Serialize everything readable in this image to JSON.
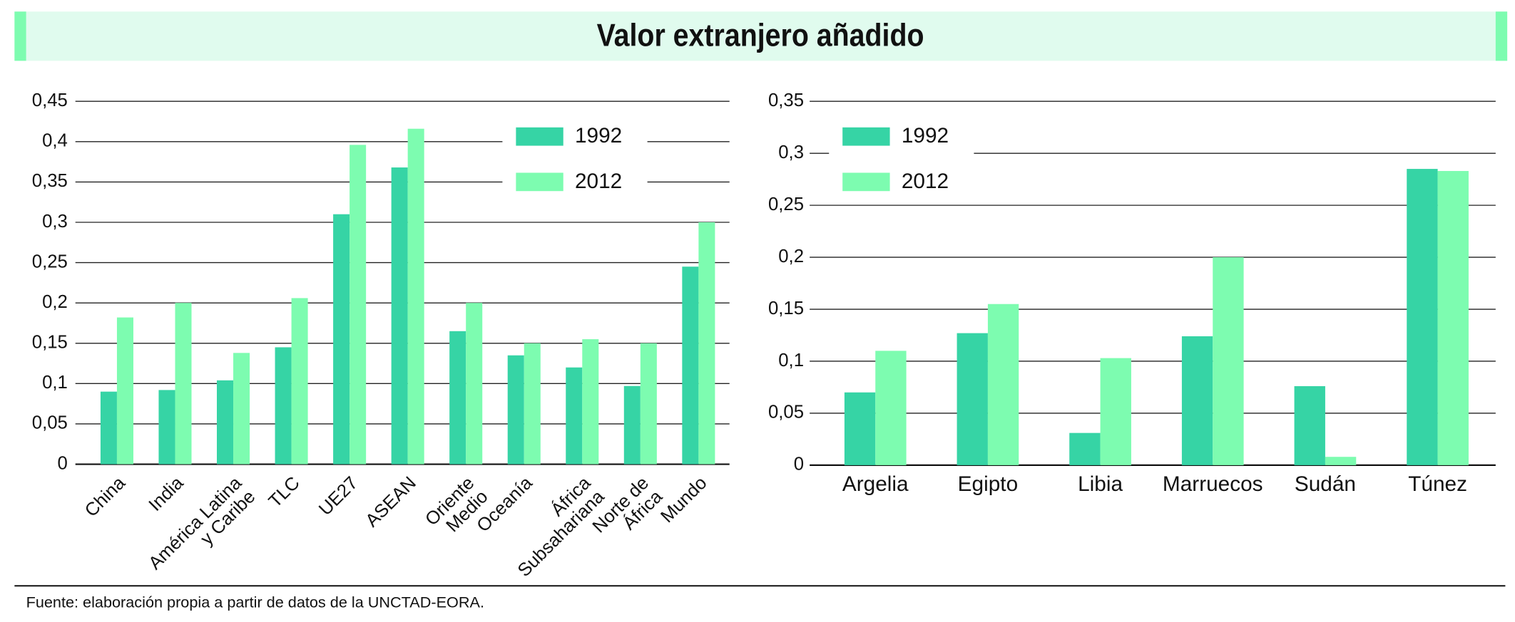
{
  "title": "Valor extranjero añadido",
  "source": "Fuente: elaboración propia a partir de datos de la UNCTAD-EORA.",
  "chart_data": [
    {
      "type": "bar",
      "categories": [
        "China",
        "India",
        "América Latina\ny Caribe",
        "TLC",
        "UE27",
        "ASEAN",
        "Oriente\nMedio",
        "Oceanía",
        "África\nSubsahariana",
        "Norte de\nÁfrica",
        "Mundo"
      ],
      "series": [
        {
          "name": "1992",
          "color": "#36d4a5",
          "values": [
            0.09,
            0.092,
            0.104,
            0.145,
            0.31,
            0.368,
            0.165,
            0.135,
            0.12,
            0.097,
            0.245
          ]
        },
        {
          "name": "2012",
          "color": "#7dfcb0",
          "values": [
            0.182,
            0.2,
            0.138,
            0.206,
            0.396,
            0.416,
            0.2,
            0.15,
            0.155,
            0.15,
            0.3
          ]
        }
      ],
      "ylim": [
        0,
        0.45
      ],
      "yticks": [
        0,
        {
          "value": 0.05,
          "label": "0,05"
        },
        {
          "value": 0.1,
          "label": "0,1"
        },
        {
          "value": 0.15,
          "label": "0,15"
        },
        {
          "value": 0.2,
          "label": "0,2"
        },
        {
          "value": 0.25,
          "label": "0,25"
        },
        {
          "value": 0.3,
          "label": "0,3"
        },
        {
          "value": 0.35,
          "label": "0,35"
        },
        {
          "value": 0.4,
          "label": "0,4"
        },
        {
          "value": 0.45,
          "label": "0,45"
        }
      ],
      "grid": true,
      "legend": "upper right"
    },
    {
      "type": "bar",
      "categories": [
        "Argelia",
        "Egipto",
        "Libia",
        "Marruecos",
        "Sudán",
        "Túnez"
      ],
      "series": [
        {
          "name": "1992",
          "color": "#36d4a5",
          "values": [
            0.07,
            0.127,
            0.031,
            0.124,
            0.076,
            0.285
          ]
        },
        {
          "name": "2012",
          "color": "#7dfcb0",
          "values": [
            0.11,
            0.155,
            0.103,
            0.2,
            0.008,
            0.283
          ]
        }
      ],
      "ylim": [
        0,
        0.35
      ],
      "yticks": [
        0,
        {
          "value": 0.05,
          "label": "0,05"
        },
        {
          "value": 0.1,
          "label": "0,1"
        },
        {
          "value": 0.15,
          "label": "0,15"
        },
        {
          "value": 0.2,
          "label": "0,2"
        },
        {
          "value": 0.25,
          "label": "0,25"
        },
        {
          "value": 0.3,
          "label": "0,3"
        },
        {
          "value": 0.35,
          "label": "0,35"
        }
      ],
      "grid": true,
      "legend": "upper left"
    }
  ]
}
